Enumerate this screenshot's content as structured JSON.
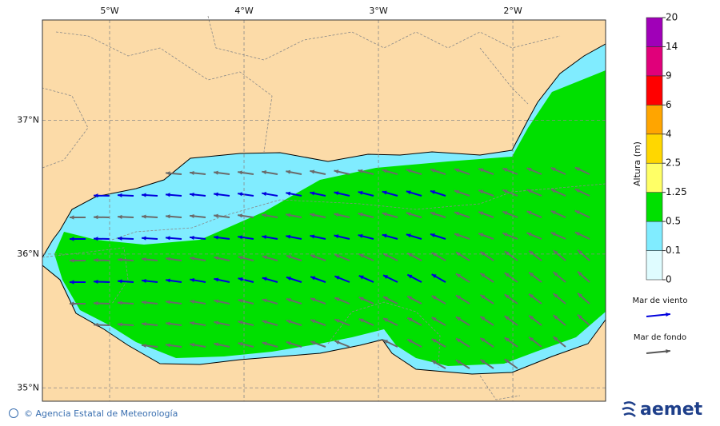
{
  "map": {
    "x_axis": {
      "lim": [
        -5.5,
        -1.31
      ],
      "ticks": [
        {
          "value": -5,
          "label": "5°W"
        },
        {
          "value": -4,
          "label": "4°W"
        },
        {
          "value": -3,
          "label": "3°W"
        },
        {
          "value": -2,
          "label": "2°W"
        }
      ]
    },
    "y_axis": {
      "lim": [
        34.9,
        37.75
      ],
      "ticks": [
        {
          "value": 37,
          "label": "37°N"
        },
        {
          "value": 36,
          "label": "36°N"
        },
        {
          "value": 35,
          "label": "35°N"
        }
      ]
    },
    "colorbar": {
      "title": "Altura (m)",
      "levels": [
        0,
        0.1,
        0.5,
        1.25,
        2.5,
        4,
        6,
        9,
        14,
        20
      ],
      "colors": [
        "#dffcff",
        "#80ecff",
        "#00e000",
        "#ffff66",
        "#ffd700",
        "#ffa500",
        "#ff0000",
        "#e0007a",
        "#a000b8"
      ]
    },
    "legend": [
      {
        "label": "Mar de viento",
        "color": "#0000dd"
      },
      {
        "label": "Mar de fondo",
        "color": "#555555"
      }
    ]
  },
  "footer": {
    "credit": "© Agencia Estatal de Meteorología",
    "logo": "aemet"
  }
}
